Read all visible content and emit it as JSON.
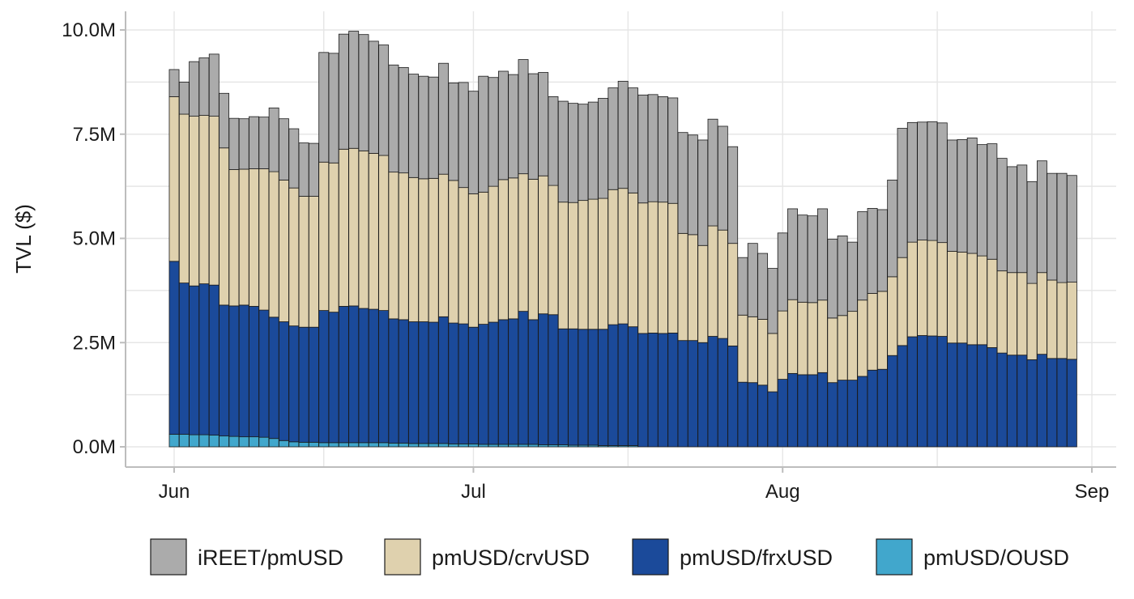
{
  "chart_data": {
    "type": "bar",
    "stacked": true,
    "title": "",
    "xlabel": "",
    "ylabel": "TVL ($)",
    "ylim": [
      0,
      10000000
    ],
    "grid": true,
    "legend_position": "bottom",
    "y_ticks": [
      {
        "value": 0,
        "label": "0.0M"
      },
      {
        "value": 2500000,
        "label": "2.5M"
      },
      {
        "value": 5000000,
        "label": "5.0M"
      },
      {
        "value": 7500000,
        "label": "7.5M"
      },
      {
        "value": 10000000,
        "label": "10.0M"
      }
    ],
    "x_ticks": [
      {
        "value": "2023-06-01",
        "label": "Jun"
      },
      {
        "value": "2023-07-01",
        "label": "Jul"
      },
      {
        "value": "2023-08-01",
        "label": "Aug"
      },
      {
        "value": "2023-09-01",
        "label": "Sep"
      }
    ],
    "x": [
      "2023-06-01",
      "2023-06-02",
      "2023-06-03",
      "2023-06-04",
      "2023-06-05",
      "2023-06-06",
      "2023-06-07",
      "2023-06-08",
      "2023-06-09",
      "2023-06-10",
      "2023-06-11",
      "2023-06-12",
      "2023-06-13",
      "2023-06-14",
      "2023-06-15",
      "2023-06-16",
      "2023-06-17",
      "2023-06-18",
      "2023-06-19",
      "2023-06-20",
      "2023-06-21",
      "2023-06-22",
      "2023-06-23",
      "2023-06-24",
      "2023-06-25",
      "2023-06-26",
      "2023-06-27",
      "2023-06-28",
      "2023-06-29",
      "2023-06-30",
      "2023-07-01",
      "2023-07-02",
      "2023-07-03",
      "2023-07-04",
      "2023-07-05",
      "2023-07-06",
      "2023-07-07",
      "2023-07-08",
      "2023-07-09",
      "2023-07-10",
      "2023-07-11",
      "2023-07-12",
      "2023-07-13",
      "2023-07-14",
      "2023-07-15",
      "2023-07-16",
      "2023-07-17",
      "2023-07-18",
      "2023-07-19",
      "2023-07-20",
      "2023-07-21",
      "2023-07-22",
      "2023-07-23",
      "2023-07-24",
      "2023-07-25",
      "2023-07-26",
      "2023-07-27",
      "2023-07-28",
      "2023-07-29",
      "2023-07-30",
      "2023-07-31",
      "2023-08-01",
      "2023-08-02",
      "2023-08-03",
      "2023-08-04",
      "2023-08-05",
      "2023-08-06",
      "2023-08-07",
      "2023-08-08",
      "2023-08-09",
      "2023-08-10",
      "2023-08-11",
      "2023-08-12",
      "2023-08-13",
      "2023-08-14",
      "2023-08-15",
      "2023-08-16",
      "2023-08-17",
      "2023-08-18",
      "2023-08-19",
      "2023-08-20",
      "2023-08-21",
      "2023-08-22",
      "2023-08-23",
      "2023-08-24",
      "2023-08-25",
      "2023-08-26",
      "2023-08-27",
      "2023-08-28",
      "2023-08-29",
      "2023-08-30"
    ],
    "series": [
      {
        "name": "pmUSD/OUSD",
        "color": "#41a7cc",
        "values": [
          300000,
          300000,
          290000,
          290000,
          280000,
          260000,
          250000,
          240000,
          240000,
          230000,
          200000,
          150000,
          120000,
          110000,
          110000,
          100000,
          100000,
          100000,
          100000,
          100000,
          100000,
          100000,
          90000,
          90000,
          80000,
          80000,
          80000,
          80000,
          70000,
          70000,
          70000,
          60000,
          60000,
          60000,
          60000,
          60000,
          60000,
          50000,
          50000,
          50000,
          40000,
          40000,
          40000,
          30000,
          30000,
          30000,
          30000,
          0,
          0,
          0,
          0,
          0,
          0,
          0,
          0,
          0,
          0,
          0,
          0,
          0,
          0,
          0,
          0,
          0,
          0,
          0,
          0,
          0,
          0,
          0,
          0,
          0,
          0,
          0,
          0,
          0,
          0,
          0,
          0,
          0,
          0,
          0,
          0,
          0,
          0,
          0,
          0,
          0,
          0,
          0,
          0
        ]
      },
      {
        "name": "pmUSD/frxUSD",
        "color": "#1b4a9a",
        "values": [
          4150000,
          3630000,
          3570000,
          3620000,
          3600000,
          3140000,
          3130000,
          3160000,
          3130000,
          3050000,
          2910000,
          2850000,
          2780000,
          2760000,
          2760000,
          3170000,
          3130000,
          3270000,
          3280000,
          3220000,
          3200000,
          3170000,
          2980000,
          2960000,
          2920000,
          2920000,
          2910000,
          3040000,
          2900000,
          2880000,
          2800000,
          2880000,
          2930000,
          2990000,
          3010000,
          3190000,
          2990000,
          3140000,
          3120000,
          2780000,
          2790000,
          2780000,
          2780000,
          2790000,
          2900000,
          2920000,
          2850000,
          2720000,
          2730000,
          2720000,
          2730000,
          2550000,
          2550000,
          2500000,
          2650000,
          2600000,
          2420000,
          1550000,
          1540000,
          1480000,
          1320000,
          1620000,
          1760000,
          1730000,
          1730000,
          1780000,
          1540000,
          1600000,
          1600000,
          1690000,
          1840000,
          1860000,
          2190000,
          2430000,
          2640000,
          2670000,
          2660000,
          2650000,
          2490000,
          2490000,
          2450000,
          2450000,
          2380000,
          2250000,
          2200000,
          2200000,
          2090000,
          2220000,
          2120000,
          2120000,
          2100000
        ]
      },
      {
        "name": "pmUSD/crvUSD",
        "color": "#dfd1ae",
        "values": [
          3950000,
          4050000,
          4070000,
          4040000,
          4050000,
          3770000,
          3270000,
          3260000,
          3300000,
          3390000,
          3490000,
          3400000,
          3310000,
          3140000,
          3140000,
          3560000,
          3580000,
          3770000,
          3780000,
          3780000,
          3740000,
          3720000,
          3520000,
          3520000,
          3460000,
          3430000,
          3450000,
          3420000,
          3420000,
          3270000,
          3200000,
          3170000,
          3260000,
          3360000,
          3380000,
          3300000,
          3370000,
          3310000,
          3100000,
          3040000,
          3030000,
          3090000,
          3120000,
          3140000,
          3240000,
          3250000,
          3210000,
          3130000,
          3150000,
          3150000,
          3110000,
          2570000,
          2540000,
          2330000,
          2650000,
          2600000,
          2460000,
          1610000,
          1580000,
          1580000,
          1400000,
          1640000,
          1770000,
          1740000,
          1730000,
          1740000,
          1550000,
          1550000,
          1650000,
          1830000,
          1840000,
          1870000,
          1890000,
          2110000,
          2270000,
          2290000,
          2290000,
          2250000,
          2200000,
          2180000,
          2190000,
          2130000,
          2120000,
          1970000,
          1980000,
          1980000,
          1830000,
          1960000,
          1880000,
          1820000,
          1850000
        ]
      },
      {
        "name": "iREET/pmUSD",
        "color": "#ababab",
        "values": [
          650000,
          770000,
          1310000,
          1380000,
          1490000,
          1310000,
          1230000,
          1210000,
          1250000,
          1240000,
          1530000,
          1470000,
          1420000,
          1280000,
          1270000,
          2630000,
          2630000,
          2760000,
          2810000,
          2790000,
          2690000,
          2650000,
          2570000,
          2530000,
          2480000,
          2460000,
          2430000,
          2660000,
          2340000,
          2520000,
          2460000,
          2780000,
          2610000,
          2600000,
          2480000,
          2740000,
          2530000,
          2480000,
          2130000,
          2420000,
          2380000,
          2310000,
          2330000,
          2400000,
          2440000,
          2570000,
          2520000,
          2590000,
          2570000,
          2530000,
          2530000,
          2420000,
          2390000,
          2530000,
          2560000,
          2490000,
          2320000,
          1380000,
          1760000,
          1580000,
          1560000,
          1870000,
          2180000,
          2090000,
          2080000,
          2190000,
          1890000,
          1910000,
          1660000,
          2120000,
          2040000,
          1960000,
          2320000,
          3100000,
          2870000,
          2830000,
          2850000,
          2870000,
          2670000,
          2700000,
          2770000,
          2670000,
          2770000,
          2700000,
          2540000,
          2580000,
          2440000,
          2680000,
          2560000,
          2620000,
          2560000
        ]
      }
    ]
  }
}
